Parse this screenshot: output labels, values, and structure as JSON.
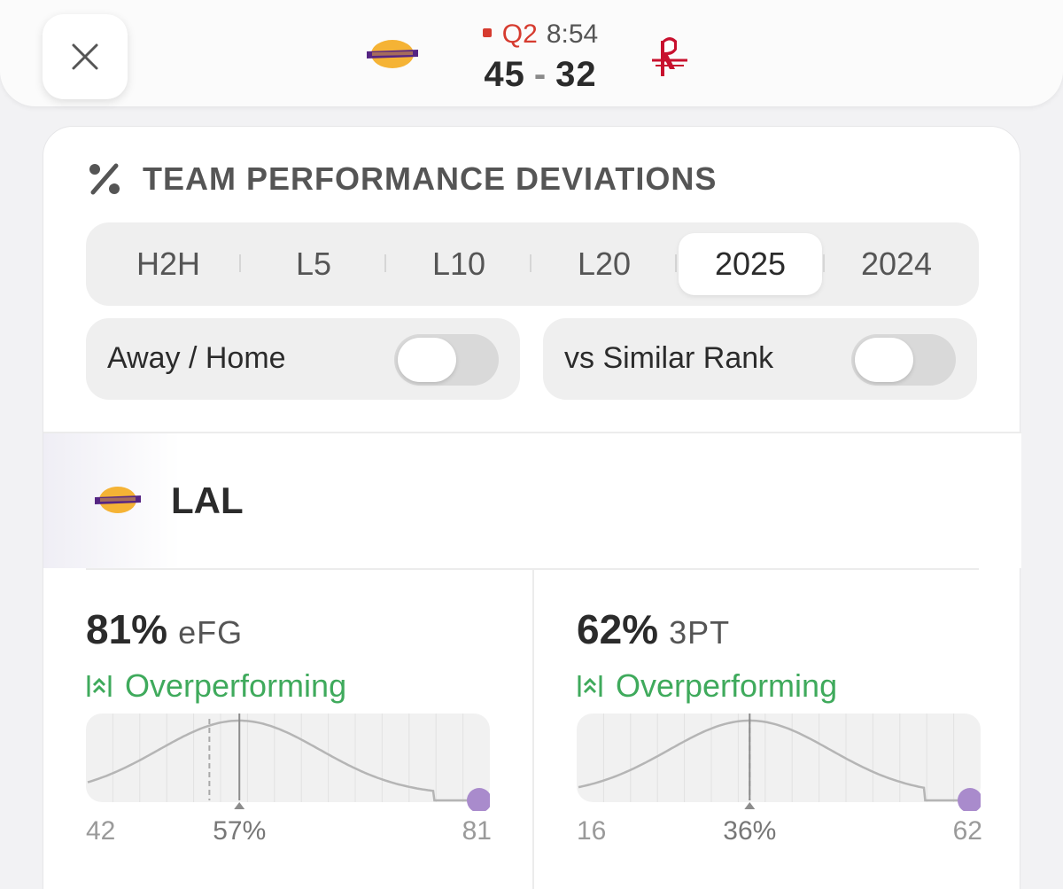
{
  "header": {
    "close_icon": "close-icon",
    "away_logo": "lakers-logo",
    "home_logo": "rockets-logo",
    "live_color": "#d63b2f",
    "quarter": "Q2",
    "clock": "8:54",
    "away_score": "45",
    "score_separator": "-",
    "home_score": "32"
  },
  "section": {
    "icon": "percent-icon",
    "title": "TEAM PERFORMANCE DEVIATIONS"
  },
  "segments": {
    "items": [
      "H2H",
      "L5",
      "L10",
      "L20",
      "2025",
      "2024"
    ],
    "selected": "2025"
  },
  "toggles": [
    {
      "label": "Away / Home",
      "on": false
    },
    {
      "label": "vs Similar Rank",
      "on": false
    }
  ],
  "team": {
    "logo": "lakers-logo",
    "abbr": "LAL"
  },
  "stats": [
    {
      "value": "81%",
      "name": "eFG",
      "status": "Overperforming",
      "status_color": "#3faa5c",
      "status_icon": "overperforming-icon",
      "axis_min": "42",
      "axis_avg": "57%",
      "axis_max": "81",
      "range": [
        42,
        81
      ],
      "average": 57,
      "reference": 54,
      "current": 81
    },
    {
      "value": "62%",
      "name": "3PT",
      "status": "Overperforming",
      "status_color": "#3faa5c",
      "status_icon": "overperforming-icon",
      "axis_min": "16",
      "axis_avg": "36%",
      "axis_max": "62",
      "range": [
        16,
        62
      ],
      "average": 36,
      "reference": 36,
      "current": 62
    }
  ]
}
